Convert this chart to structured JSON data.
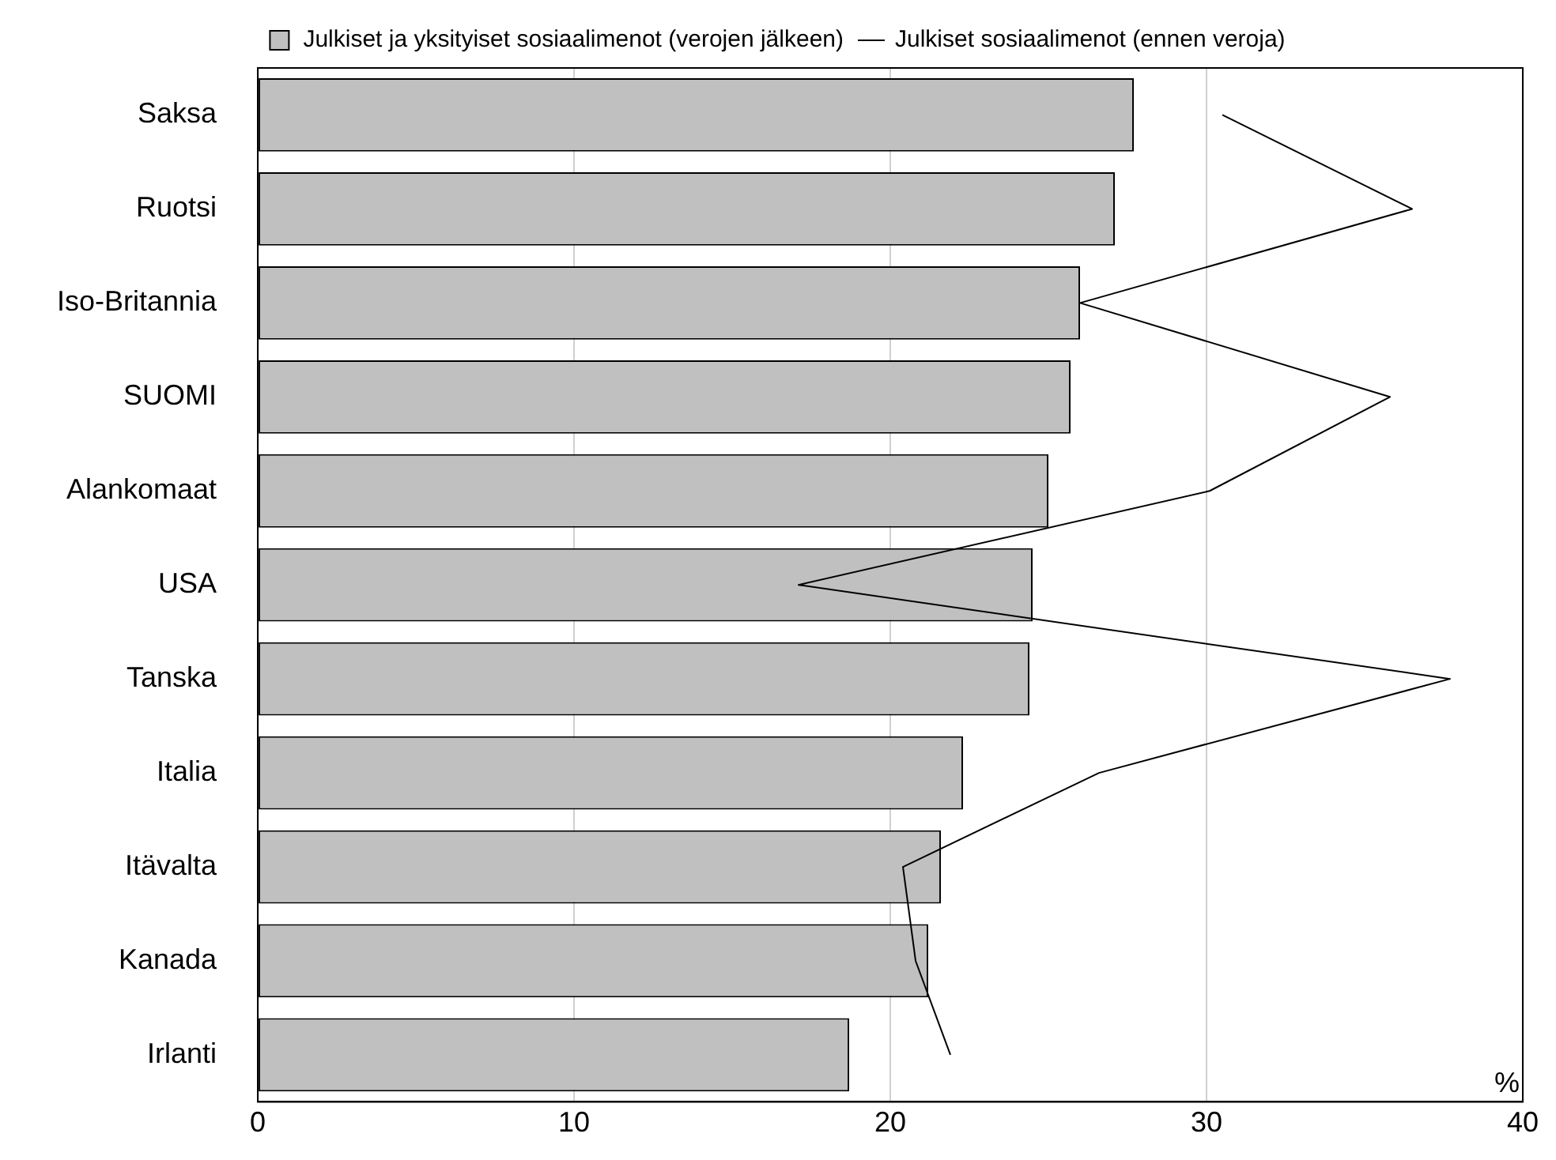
{
  "chart_data": {
    "type": "bar",
    "orientation": "horizontal",
    "xlabel": "%",
    "categories": [
      "Saksa",
      "Ruotsi",
      "Iso-Britannia",
      "SUOMI",
      "Alankomaat",
      "USA",
      "Tanska",
      "Italia",
      "Itävalta",
      "Kanada",
      "Irlanti"
    ],
    "series": [
      {
        "name": "Julkiset ja yksityiset sosiaalimenot (verojen jälkeen)",
        "color": "#c0c0c0",
        "values": [
          27.7,
          27.1,
          26.0,
          25.7,
          25.0,
          24.5,
          24.4,
          22.3,
          21.6,
          21.2,
          18.7
        ]
      },
      {
        "name": "Julkiset sosiaalimenot (ennen veroja)",
        "type": "line",
        "color": "#000000",
        "values": [
          30.5,
          36.5,
          26.0,
          35.8,
          30.1,
          17.1,
          37.7,
          26.6,
          20.4,
          20.8,
          21.9
        ]
      }
    ],
    "xlim": [
      0,
      40
    ],
    "xticks": [
      0,
      10,
      20,
      30,
      40
    ],
    "grid": "x",
    "legend": "top",
    "marker": "none"
  }
}
